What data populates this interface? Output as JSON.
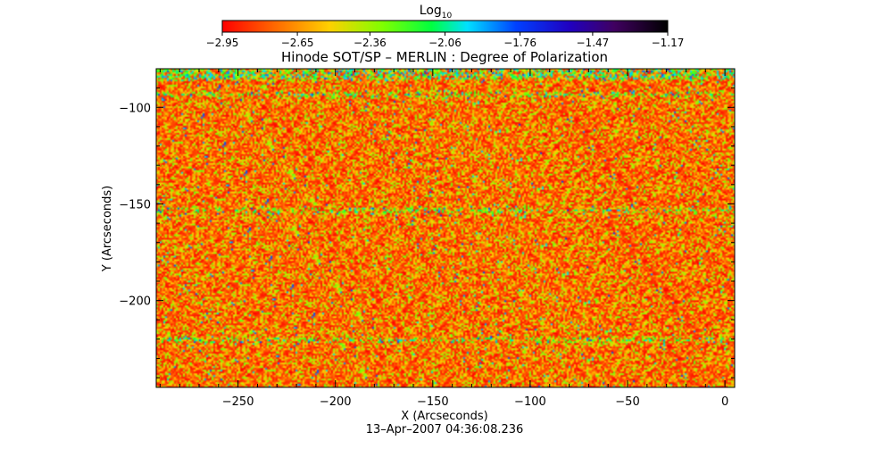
{
  "chart_data": {
    "type": "heatmap",
    "title": "Hinode SOT/SP – MERLIN : Degree of Polarization",
    "xlabel": "X (Arcseconds)",
    "ylabel": "Y (Arcseconds)",
    "xlim": [
      -292,
      5
    ],
    "ylim": [
      -245,
      -80
    ],
    "x_ticks": [
      -250,
      -200,
      -150,
      -100,
      -50,
      0
    ],
    "x_tick_labels": [
      "−250",
      "−200",
      "−150",
      "−100",
      "−50",
      "0"
    ],
    "y_ticks": [
      -100,
      -150,
      -200
    ],
    "y_tick_labels": [
      "−100",
      "−150",
      "−200"
    ],
    "timestamp": "13–Apr–2007 04:36:08.236",
    "colorbar": {
      "label_base": "Log",
      "label_sub": "10",
      "min": -2.95,
      "max": -1.17,
      "ticks": [
        -2.95,
        -2.65,
        -2.36,
        -2.06,
        -1.76,
        -1.47,
        -1.17
      ],
      "tick_labels": [
        "−2.95",
        "−2.65",
        "−2.36",
        "−2.06",
        "−1.76",
        "−1.47",
        "−1.17"
      ],
      "colormap": [
        "#ff0000",
        "#ff6a00",
        "#ffd000",
        "#7fff00",
        "#00ff40",
        "#00e0ff",
        "#0040ff",
        "#2000c0",
        "#400060",
        "#000000"
      ]
    },
    "value_distribution": {
      "dominant_range": [
        -2.95,
        -2.55
      ],
      "secondary_range": [
        -2.55,
        -2.2
      ],
      "sparse_high_range": [
        -2.2,
        -1.76
      ],
      "high_value_rows_y": [
        -84,
        -93,
        -153,
        -220
      ]
    },
    "colors": {
      "frame": "#000000",
      "background": "#ffffff"
    }
  }
}
